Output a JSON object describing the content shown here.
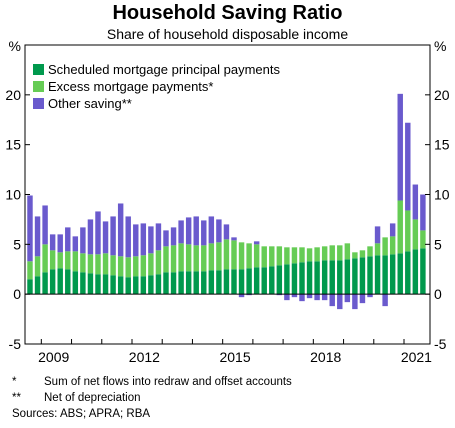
{
  "chart_data": {
    "type": "bar",
    "stacked": true,
    "title": "Household Saving Ratio",
    "subtitle": "Share of household disposable income",
    "ylabel_left": "%",
    "ylabel_right": "%",
    "ylim": [
      -5,
      25
    ],
    "y_ticks": [
      -5,
      0,
      5,
      10,
      15,
      20
    ],
    "x_tick_labels": [
      "2009",
      "2012",
      "2015",
      "2018",
      "2021"
    ],
    "x_tick_label_index": [
      2,
      14,
      26,
      38,
      50
    ],
    "frequency": "quarterly",
    "start": "2008 Q3",
    "end": "2021 Q1",
    "grid": false,
    "legend_position": "top-left",
    "colors": {
      "Scheduled mortgage principal payments": "#00994d",
      "Excess mortgage payments*": "#66cc55",
      "Other saving**": "#6a5acd"
    },
    "series": [
      {
        "name": "Scheduled mortgage principal payments",
        "values": [
          1.5,
          1.8,
          2.2,
          2.5,
          2.6,
          2.5,
          2.3,
          2.2,
          2.1,
          2.0,
          2.0,
          1.9,
          1.8,
          1.7,
          1.8,
          1.8,
          1.9,
          2.0,
          2.2,
          2.2,
          2.3,
          2.3,
          2.3,
          2.3,
          2.4,
          2.4,
          2.5,
          2.5,
          2.5,
          2.6,
          2.7,
          2.7,
          2.8,
          2.9,
          3.0,
          3.1,
          3.2,
          3.3,
          3.3,
          3.4,
          3.4,
          3.4,
          3.5,
          3.6,
          3.7,
          3.8,
          3.9,
          3.9,
          4.0,
          4.1,
          4.3,
          4.5,
          4.6
        ]
      },
      {
        "name": "Excess mortgage payments*",
        "values": [
          1.8,
          2.0,
          2.8,
          1.9,
          1.6,
          1.8,
          2.0,
          1.9,
          1.9,
          2.0,
          2.1,
          2.0,
          2.0,
          2.0,
          2.0,
          2.1,
          2.2,
          2.4,
          2.6,
          2.7,
          2.8,
          2.7,
          2.6,
          2.6,
          2.7,
          2.8,
          3.0,
          2.9,
          2.7,
          2.5,
          2.3,
          2.1,
          2.0,
          1.9,
          1.7,
          1.6,
          1.5,
          1.3,
          1.4,
          1.4,
          1.5,
          1.5,
          1.6,
          0.6,
          0.7,
          1.0,
          1.2,
          1.8,
          1.8,
          5.3,
          4.1,
          3.0,
          1.8
        ]
      },
      {
        "name": "Other saving**",
        "values": [
          6.6,
          4.0,
          3.9,
          1.6,
          1.8,
          2.4,
          1.5,
          2.6,
          3.5,
          4.3,
          3.2,
          3.9,
          5.3,
          4.1,
          3.2,
          3.2,
          2.7,
          2.7,
          1.6,
          1.8,
          2.3,
          2.7,
          2.9,
          2.5,
          2.7,
          2.3,
          1.5,
          0.3,
          -0.3,
          -0.1,
          0.3,
          0.0,
          0.0,
          -0.1,
          -0.6,
          -0.3,
          -0.7,
          -0.4,
          -0.6,
          -0.6,
          -1.2,
          -1.5,
          -0.8,
          -1.5,
          -0.9,
          -0.3,
          1.7,
          -1.2,
          1.3,
          10.7,
          8.8,
          3.5,
          3.6
        ]
      }
    ]
  },
  "footnotes": [
    {
      "symbol": "*",
      "text": "Sum of net flows into redraw and offset accounts"
    },
    {
      "symbol": "**",
      "text": "Net of depreciation"
    }
  ],
  "sources": "Sources: ABS; APRA; RBA"
}
